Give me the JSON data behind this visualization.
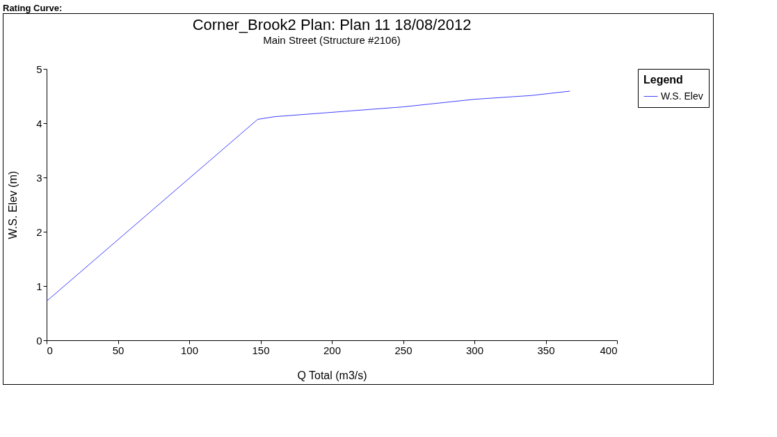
{
  "chart_data": {
    "type": "line",
    "title": "Corner_Brook2      Plan: Plan 11     18/08/2012",
    "subtitle": "Main Street (Structure #2106)",
    "xlabel": "Q Total  (m3/s)",
    "ylabel": "W.S. Elev  (m)",
    "legend_title": "Legend",
    "annotations": [
      "Rating Curve:"
    ],
    "series": [
      {
        "name": "W.S. Elev",
        "color": "#4040ff",
        "x": [
          0,
          148,
          160,
          200,
          250,
          300,
          340,
          367
        ],
        "values": [
          0.72,
          4.07,
          4.12,
          4.2,
          4.3,
          4.44,
          4.51,
          4.59
        ]
      }
    ],
    "xlim": [
      0,
      400
    ],
    "xticks": [
      0,
      50,
      100,
      150,
      200,
      250,
      300,
      350,
      400
    ],
    "ylim": [
      0,
      5
    ],
    "yticks": [
      0,
      1,
      2,
      3,
      4,
      5
    ],
    "grid": false,
    "legend": "top right",
    "marker": "none",
    "line_style": "solid"
  }
}
